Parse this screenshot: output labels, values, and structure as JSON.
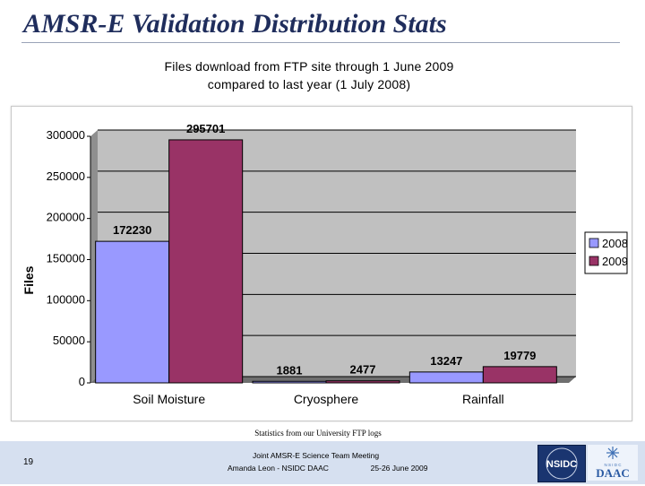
{
  "slide": {
    "title": "AMSR-E Validation Distribution Stats",
    "subtitle_line1": "Files download from FTP site through 1 June 2009",
    "subtitle_line2": "compared to last year (1 July 2008)",
    "source_note": "Statistics from our University FTP logs",
    "page_number": "19",
    "footer_line1": "Joint AMSR-E Science Team Meeting",
    "footer_presenter": "Amanda Leon - NSIDC DAAC",
    "footer_date": "25-26 June 2009",
    "logo_text_nsidc": "NSIDC",
    "logo_text_daac": "DAAC",
    "logo_text_nsidc_small": "N S I D C"
  },
  "colors": {
    "title": "#1f2d5c",
    "plot_bg": "#c0c0c0",
    "series_2008": "#9999ff",
    "series_2009": "#993366"
  },
  "chart_data": {
    "type": "bar",
    "categories": [
      "Soil Moisture",
      "Cryosphere",
      "Rainfall"
    ],
    "series": [
      {
        "name": "2008",
        "values": [
          172230,
          1881,
          13247
        ]
      },
      {
        "name": "2009",
        "values": [
          295701,
          2477,
          19779
        ]
      }
    ],
    "ylabel": "Files",
    "xlabel": "",
    "ylim": [
      0,
      300000
    ],
    "yticks": [
      0,
      50000,
      100000,
      150000,
      200000,
      250000,
      300000
    ],
    "grid": true,
    "legend": "right"
  }
}
